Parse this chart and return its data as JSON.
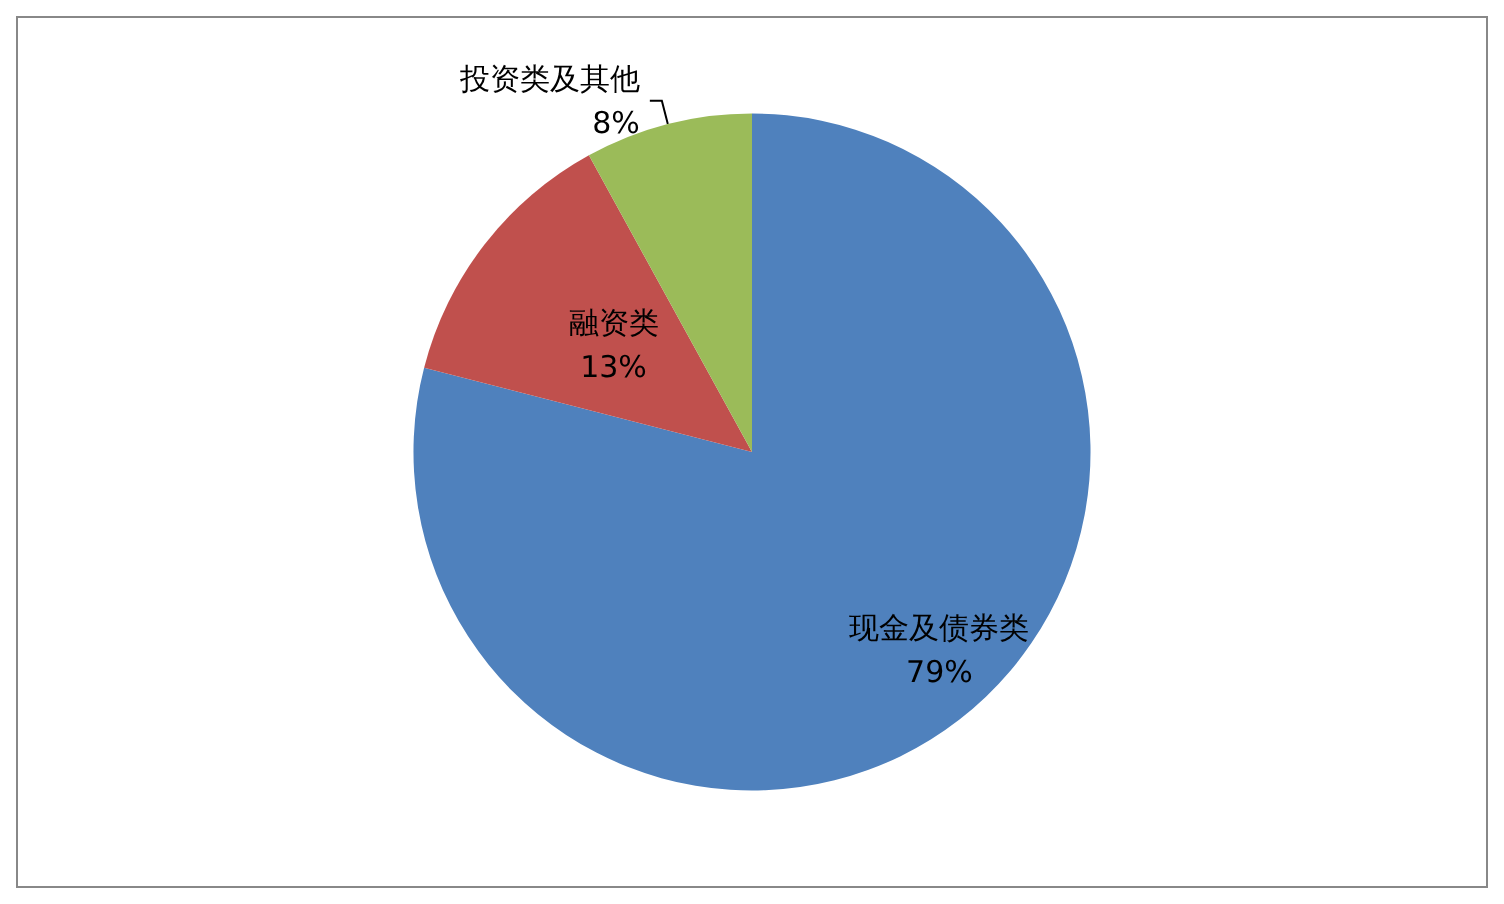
{
  "chart_data": {
    "type": "pie",
    "categories": [
      "现金及债券类",
      "融资类",
      "投资类及其他"
    ],
    "values": [
      79,
      13,
      8
    ],
    "colors": [
      "#4f81bd",
      "#c0504d",
      "#9bbb59"
    ],
    "value_labels": [
      "79%",
      "13%",
      "8%"
    ],
    "legend": false
  }
}
